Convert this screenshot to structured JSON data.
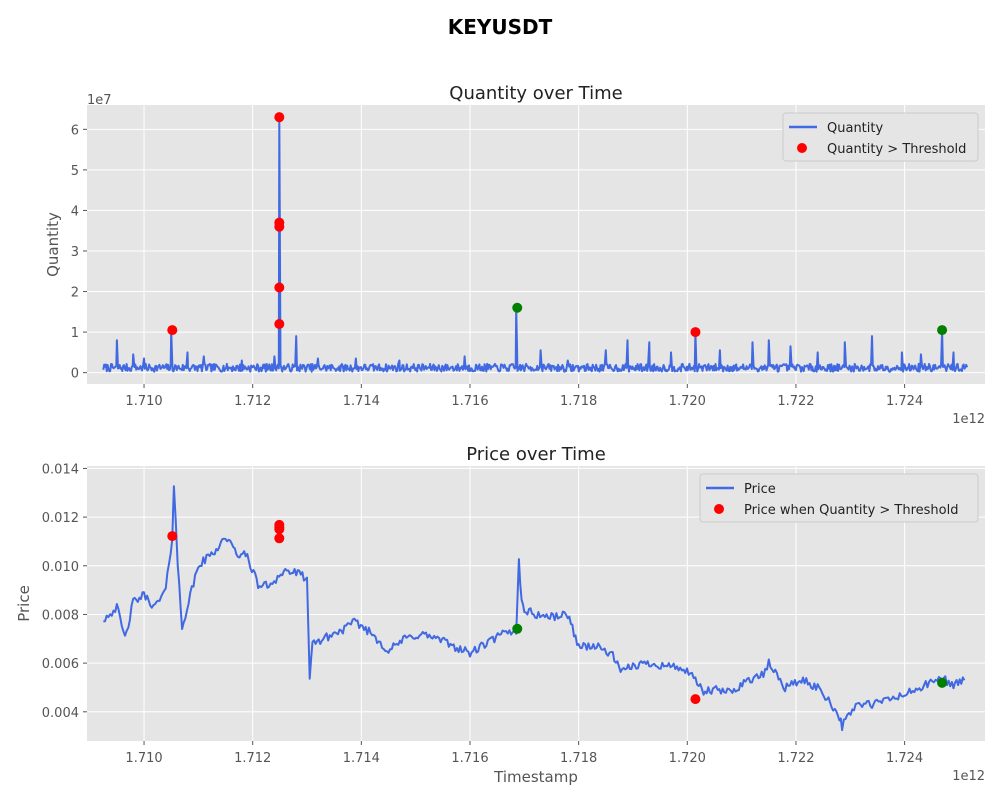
{
  "figure": {
    "title": "KEYUSDT"
  },
  "colors": {
    "line": "#4169e1",
    "over": "#ff0000",
    "green": "#008000",
    "panel": "#e5e5e5",
    "grid": "#ffffff"
  },
  "chart_data": [
    {
      "type": "line",
      "title": "Quantity over Time",
      "xlabel": "",
      "ylabel": "Quantity",
      "x_offset_label": "1e12",
      "y_offset_label": "1e7",
      "xlim": [
        1.70895,
        1.72548
      ],
      "ylim": [
        -2800000,
        66000000
      ],
      "x_ticks": [
        1.71,
        1.712,
        1.714,
        1.716,
        1.718,
        1.72,
        1.722,
        1.724
      ],
      "x_tick_labels": [
        "1.710",
        "1.712",
        "1.714",
        "1.716",
        "1.718",
        "1.720",
        "1.722",
        "1.724"
      ],
      "y_ticks": [
        0,
        10000000,
        20000000,
        30000000,
        40000000,
        50000000,
        60000000
      ],
      "y_tick_labels": [
        "0",
        "1",
        "2",
        "3",
        "4",
        "5",
        "6"
      ],
      "grid": true,
      "legend_position": "top-right",
      "series": [
        {
          "name": "Quantity",
          "x_range": [
            1.70925,
            1.72515
          ],
          "baseline": 1200000,
          "spikes": [
            {
              "x": 1.7095,
              "y": 8000000
            },
            {
              "x": 1.7098,
              "y": 4500000
            },
            {
              "x": 1.71,
              "y": 3500000
            },
            {
              "x": 1.7105,
              "y": 10500000
            },
            {
              "x": 1.7108,
              "y": 5000000
            },
            {
              "x": 1.7111,
              "y": 4000000
            },
            {
              "x": 1.7118,
              "y": 3000000
            },
            {
              "x": 1.7124,
              "y": 4000000
            },
            {
              "x": 1.71249,
              "y": 63000000
            },
            {
              "x": 1.7128,
              "y": 9000000
            },
            {
              "x": 1.7132,
              "y": 3500000
            },
            {
              "x": 1.7139,
              "y": 3500000
            },
            {
              "x": 1.7147,
              "y": 3000000
            },
            {
              "x": 1.7159,
              "y": 4000000
            },
            {
              "x": 1.71685,
              "y": 16000000
            },
            {
              "x": 1.7173,
              "y": 5500000
            },
            {
              "x": 1.7178,
              "y": 3000000
            },
            {
              "x": 1.7185,
              "y": 5500000
            },
            {
              "x": 1.7189,
              "y": 8000000
            },
            {
              "x": 1.7193,
              "y": 7500000
            },
            {
              "x": 1.7197,
              "y": 5000000
            },
            {
              "x": 1.72015,
              "y": 10000000
            },
            {
              "x": 1.7206,
              "y": 5500000
            },
            {
              "x": 1.7212,
              "y": 7500000
            },
            {
              "x": 1.7215,
              "y": 8000000
            },
            {
              "x": 1.7219,
              "y": 6500000
            },
            {
              "x": 1.7224,
              "y": 5000000
            },
            {
              "x": 1.7229,
              "y": 7500000
            },
            {
              "x": 1.7234,
              "y": 9000000
            },
            {
              "x": 1.72395,
              "y": 5000000
            },
            {
              "x": 1.7243,
              "y": 4500000
            },
            {
              "x": 1.72469,
              "y": 10500000
            },
            {
              "x": 1.7249,
              "y": 5000000
            }
          ]
        },
        {
          "name": "Quantity > Threshold",
          "points": [
            {
              "x": 1.71052,
              "y": 10500000,
              "color": "#ff0000"
            },
            {
              "x": 1.71249,
              "y": 63000000,
              "color": "#ff0000"
            },
            {
              "x": 1.71249,
              "y": 37000000,
              "color": "#ff0000"
            },
            {
              "x": 1.71249,
              "y": 36000000,
              "color": "#ff0000"
            },
            {
              "x": 1.71249,
              "y": 21000000,
              "color": "#ff0000"
            },
            {
              "x": 1.71249,
              "y": 12000000,
              "color": "#ff0000"
            },
            {
              "x": 1.71687,
              "y": 16000000,
              "color": "#008000"
            },
            {
              "x": 1.72015,
              "y": 10000000,
              "color": "#ff0000"
            },
            {
              "x": 1.72469,
              "y": 10500000,
              "color": "#008000"
            }
          ]
        }
      ]
    },
    {
      "type": "line",
      "title": "Price over Time",
      "xlabel": "Timestamp",
      "ylabel": "Price",
      "x_offset_label": "1e12",
      "xlim": [
        1.70895,
        1.72548
      ],
      "ylim": [
        0.0028,
        0.0141
      ],
      "x_ticks": [
        1.71,
        1.712,
        1.714,
        1.716,
        1.718,
        1.72,
        1.722,
        1.724
      ],
      "x_tick_labels": [
        "1.710",
        "1.712",
        "1.714",
        "1.716",
        "1.718",
        "1.720",
        "1.722",
        "1.724"
      ],
      "y_ticks": [
        0.004,
        0.006,
        0.008,
        0.01,
        0.012,
        0.014
      ],
      "y_tick_labels": [
        "0.004",
        "0.006",
        "0.008",
        "0.010",
        "0.012",
        "0.014"
      ],
      "grid": true,
      "legend_position": "top-right",
      "series": [
        {
          "name": "Price",
          "x": [
            1.70925,
            1.7095,
            1.70965,
            1.7098,
            1.71,
            1.7102,
            1.7104,
            1.71052,
            1.71055,
            1.71062,
            1.7107,
            1.711,
            1.7113,
            1.7115,
            1.7117,
            1.7119,
            1.7121,
            1.7123,
            1.71249,
            1.7126,
            1.7128,
            1.713,
            1.71305,
            1.7131,
            1.7133,
            1.7136,
            1.7139,
            1.7142,
            1.7145,
            1.7148,
            1.7151,
            1.7154,
            1.7157,
            1.716,
            1.7163,
            1.7166,
            1.71685,
            1.7169,
            1.71695,
            1.717,
            1.7172,
            1.7175,
            1.7178,
            1.718,
            1.7183,
            1.7186,
            1.7188,
            1.719,
            1.7193,
            1.7196,
            1.7199,
            1.72015,
            1.7203,
            1.7205,
            1.7208,
            1.7211,
            1.7214,
            1.7215,
            1.7218,
            1.7221,
            1.7224,
            1.7226,
            1.7228,
            1.72285,
            1.7231,
            1.7234,
            1.7237,
            1.724,
            1.7243,
            1.72469,
            1.7249,
            1.7251
          ],
          "values": [
            0.0078,
            0.0083,
            0.007,
            0.0085,
            0.0088,
            0.0083,
            0.009,
            0.0112,
            0.0134,
            0.01,
            0.0075,
            0.01,
            0.0106,
            0.0112,
            0.0105,
            0.0104,
            0.0092,
            0.0092,
            0.0096,
            0.0098,
            0.0097,
            0.0095,
            0.0052,
            0.0068,
            0.007,
            0.0073,
            0.0077,
            0.0072,
            0.0065,
            0.007,
            0.0072,
            0.007,
            0.0067,
            0.0064,
            0.0068,
            0.0072,
            0.0073,
            0.0103,
            0.0085,
            0.0082,
            0.008,
            0.0079,
            0.008,
            0.0067,
            0.0067,
            0.0064,
            0.0056,
            0.0059,
            0.006,
            0.0059,
            0.0058,
            0.0053,
            0.0048,
            0.0049,
            0.0048,
            0.0053,
            0.0055,
            0.006,
            0.005,
            0.0053,
            0.005,
            0.0045,
            0.0038,
            0.0034,
            0.0043,
            0.0043,
            0.0045,
            0.0047,
            0.005,
            0.0054,
            0.0051,
            0.0053
          ]
        },
        {
          "name": "Price when Quantity > Threshold",
          "points": [
            {
              "x": 1.71052,
              "y": 0.01122,
              "color": "#ff0000"
            },
            {
              "x": 1.71249,
              "y": 0.01168,
              "color": "#ff0000"
            },
            {
              "x": 1.71249,
              "y": 0.01158,
              "color": "#ff0000"
            },
            {
              "x": 1.71249,
              "y": 0.0115,
              "color": "#ff0000"
            },
            {
              "x": 1.71249,
              "y": 0.01113,
              "color": "#ff0000"
            },
            {
              "x": 1.71687,
              "y": 0.00741,
              "color": "#008000"
            },
            {
              "x": 1.72015,
              "y": 0.00452,
              "color": "#ff0000"
            },
            {
              "x": 1.72469,
              "y": 0.00519,
              "color": "#008000"
            }
          ]
        }
      ]
    }
  ]
}
